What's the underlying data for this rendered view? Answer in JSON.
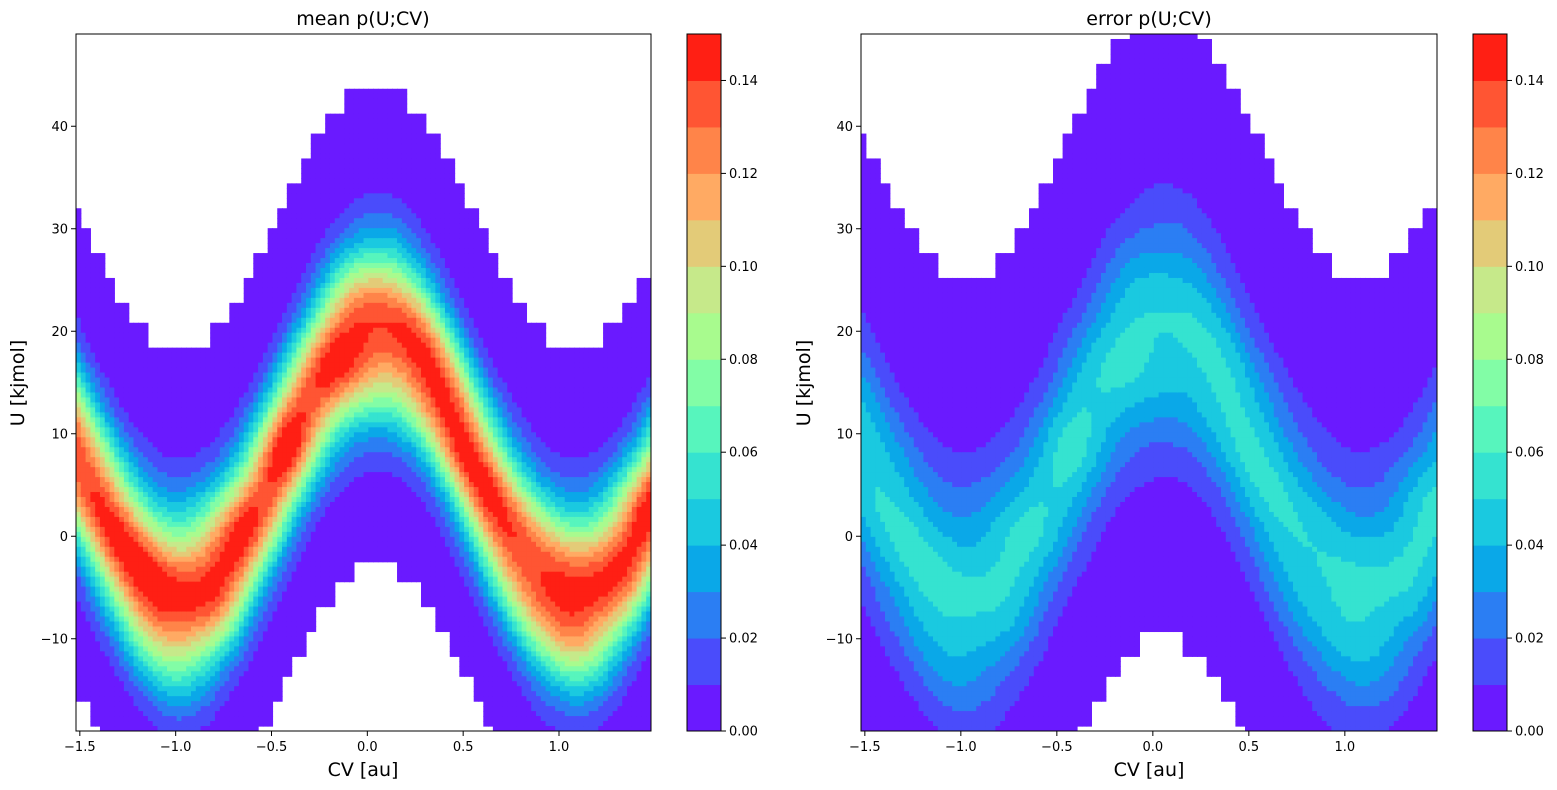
{
  "chart_data": [
    {
      "type": "heatmap",
      "subtype": "filled-contour",
      "title": "mean p(U;CV)",
      "xlabel": "CV [au]",
      "ylabel": "U [kjmol]",
      "xlim": [
        -1.52,
        1.48
      ],
      "ylim": [
        -19.0,
        49.0
      ],
      "xticks": [
        -1.5,
        -1.0,
        -0.5,
        0.0,
        0.5,
        1.0
      ],
      "xtick_labels": [
        "−1.5",
        "−1.0",
        "−0.5",
        "0.0",
        "0.5",
        "1.0"
      ],
      "yticks": [
        -10,
        0,
        10,
        20,
        30,
        40
      ],
      "ytick_labels": [
        "−10",
        "0",
        "10",
        "20",
        "30",
        "40"
      ],
      "field": {
        "ridge_amplitude": 13.0,
        "ridge_center": 7.0,
        "ridge_period": 2.06,
        "ridge_phase_cv": 0.05,
        "peak_value": 0.145,
        "halfwidth_low": 10.5,
        "halfwidth_high": 10.5,
        "lower_cutoff_base": 3.5,
        "upper_cutoff_base": 33.0,
        "cutoff_step": 2.3
      },
      "colorbar": {
        "ticks": [
          0.0,
          0.02,
          0.04,
          0.06,
          0.08,
          0.1,
          0.12,
          0.14
        ],
        "tick_labels": [
          "0.00",
          "0.02",
          "0.04",
          "0.06",
          "0.08",
          "0.10",
          "0.12",
          "0.14"
        ],
        "range": [
          0.0,
          0.15
        ]
      }
    },
    {
      "type": "heatmap",
      "subtype": "filled-contour",
      "title": "error p(U;CV)",
      "xlabel": "CV [au]",
      "ylabel": "U [kjmol]",
      "xlim": [
        -1.52,
        1.48
      ],
      "ylim": [
        -19.0,
        49.0
      ],
      "xticks": [
        -1.5,
        -1.0,
        -0.5,
        0.0,
        0.5,
        1.0
      ],
      "xtick_labels": [
        "−1.5",
        "−1.0",
        "−0.5",
        "0.0",
        "0.5",
        "1.0"
      ],
      "yticks": [
        -10,
        0,
        10,
        20,
        30,
        40
      ],
      "ytick_labels": [
        "−10",
        "0",
        "10",
        "20",
        "30",
        "40"
      ],
      "field": {
        "ridge_amplitude": 13.0,
        "ridge_center": 7.0,
        "ridge_period": 2.06,
        "ridge_phase_cv": 0.05,
        "peak_value": 0.052,
        "halfwidth_low": 14.0,
        "halfwidth_high": 14.0,
        "lower_cutoff_base": 3.5,
        "upper_cutoff_base": 33.0,
        "cutoff_step": 2.3
      },
      "colorbar": {
        "ticks": [
          0.0,
          0.02,
          0.04,
          0.06,
          0.08,
          0.1,
          0.12,
          0.14
        ],
        "tick_labels": [
          "0.00",
          "0.02",
          "0.04",
          "0.06",
          "0.08",
          "0.10",
          "0.12",
          "0.14"
        ],
        "range": [
          0.0,
          0.15
        ]
      }
    }
  ],
  "colormap": {
    "name": "rainbow",
    "levels": 15,
    "colors": [
      "#6a1aff",
      "#4a4cfb",
      "#2b7ef3",
      "#0aa8e8",
      "#1ac9e0",
      "#35e3d0",
      "#57f5bd",
      "#82fda6",
      "#a8fb8e",
      "#c6e98a",
      "#e3cb78",
      "#ffaa63",
      "#ff8449",
      "#ff5533",
      "#ff1f14"
    ]
  }
}
